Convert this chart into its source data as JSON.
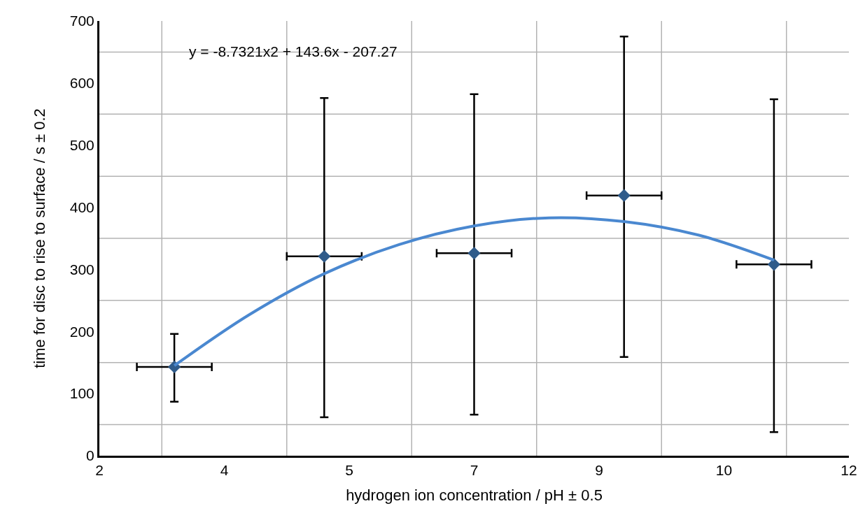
{
  "chart_data": {
    "type": "scatter",
    "xlabel": "hydrogen ion concentration / pH ± 0.5",
    "ylabel": "time for disc to rise to surface / s ± 0.2",
    "annotations": [
      "y = -8.7321x2 + 143.6x - 207.27"
    ],
    "x": [
      3,
      5,
      7,
      9,
      11
    ],
    "series": [
      {
        "color": "#2f5b8a",
        "values": [
          143,
          321,
          326,
          419,
          308
        ],
        "errors": [
          [
            87,
            196
          ],
          [
            62,
            576
          ],
          [
            66,
            582
          ],
          [
            159,
            675
          ],
          [
            38,
            574
          ]
        ],
        "xerrors": [
          0.5,
          0.5,
          0.5,
          0.5,
          0.5
        ],
        "marker": "diamond"
      },
      {
        "type": "line",
        "color": "#4a88d0",
        "x": [
          3,
          4,
          5,
          6,
          7,
          8,
          9,
          10,
          11
        ],
        "values": [
          145,
          227,
          293,
          340,
          370,
          383,
          377,
          355,
          315
        ],
        "line_style": "solid"
      }
    ],
    "xlim": [
      2,
      12
    ],
    "xticks": [
      2,
      {
        "value": 2.8333,
        "label": null
      },
      {
        "value": 3.6667,
        "label": "4"
      },
      {
        "value": 4.5,
        "label": null
      },
      {
        "value": 5.3333,
        "label": "5"
      },
      {
        "value": 6.1667,
        "label": null
      },
      7,
      {
        "value": 7.8333,
        "label": null
      },
      {
        "value": 8.6667,
        "label": "9"
      },
      {
        "value": 9.5,
        "label": null
      },
      {
        "value": 10.3333,
        "label": "10"
      },
      {
        "value": 11.1667,
        "label": null
      },
      12
    ],
    "ylim": [
      0,
      700
    ],
    "yticks": [
      0,
      {
        "value": 50,
        "label": null
      },
      100,
      {
        "value": 150,
        "label": null
      },
      200,
      {
        "value": 250,
        "label": null
      },
      300,
      {
        "value": 350,
        "label": null
      },
      400,
      {
        "value": 450,
        "label": null
      },
      500,
      {
        "value": 550,
        "label": null
      },
      600,
      {
        "value": 650,
        "label": null
      },
      700
    ],
    "grid": true
  }
}
